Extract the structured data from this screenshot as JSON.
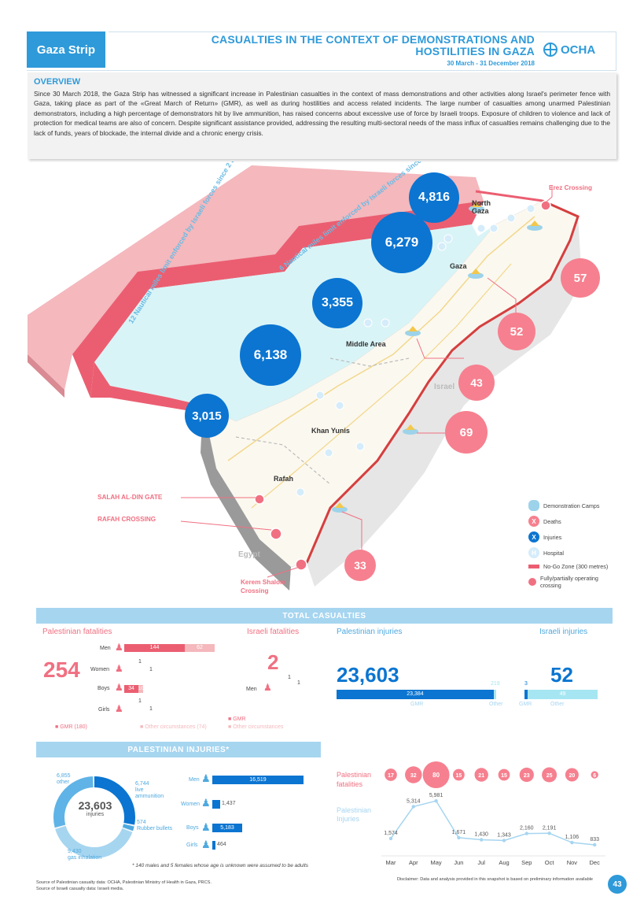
{
  "header": {
    "badge": "Gaza Strip",
    "title_line1": "CASUALTIES IN THE CONTEXT OF DEMONSTRATIONS AND",
    "title_line2": "HOSTILITIES IN GAZA",
    "date_range": "30 March - 31 December 2018",
    "org": "OCHA"
  },
  "overview": {
    "heading": "OVERVIEW",
    "text": "Since 30 March 2018, the Gaza Strip has witnessed a significant increase in Palestinian casualties in the context of mass demonstrations and other activities along Israel's perimeter fence with Gaza, taking place as part of the «Great March of Return» (GMR), as well as during hostilities and access related incidents. The large number of casualties among unarmed Palestinian demonstrators, including a high percentage of demonstrators hit by live ammunition, has raised concerns about excessive use of force by Israeli troops. Exposure of children to violence and lack of protection for medical teams are also of concern. Despite significant assistance provided, addressing the resulting multi-sectoral needs of the mass influx of casualties remains challenging due to the lack of funds, years of blockade, the internal divide and a chronic energy crisis."
  },
  "map": {
    "zone12_label": "12 Nautical miles limit enforced by Israeli forces since 2 January 2019",
    "zone6_label": "6 Nautical miles limit enforced by Israeli forces since 2 January 2019",
    "areas": [
      "North Gaza",
      "Gaza",
      "Middle Area",
      "Khan Yunis",
      "Rafah"
    ],
    "countries": {
      "israel": "Israel",
      "egypt": "Egypt"
    },
    "crossings": {
      "erez": "Erez Crossing",
      "salah": "SALAH AL-DIN GATE",
      "rafah": "RAFAH CROSSING",
      "kerem1": "Kerem Shalom",
      "kerem2": "Crossing"
    },
    "injuries": {
      "north_gaza": "4,816",
      "gaza": "6,279",
      "middle_area": "3,355",
      "khan_yunis": "6,138",
      "rafah": "3,015"
    },
    "deaths": {
      "north_gaza": "57",
      "gaza": "52",
      "middle_area": "43",
      "khan_yunis": "69",
      "rafah": "33"
    }
  },
  "legend": {
    "camps": "Demonstration Camps",
    "deaths": "Deaths",
    "injuries": "Injuries",
    "hospital": "Hospital",
    "nogo": "No-Go Zone (300 metres)",
    "crossing": "Fully/partially operating crossing",
    "sym_death": "X",
    "sym_injury": "X",
    "sym_hospital": "H"
  },
  "total_casualties": {
    "band": "TOTAL CASUALTIES",
    "pal_fatalities_title": "Palestinian fatalities",
    "pal_fatalities_total": "254",
    "isr_fatalities_title": "Israeli fatalities",
    "isr_fatalities_total": "2",
    "pal_injuries_title": "Palestinian injuries",
    "pal_injuries_total": "23,603",
    "isr_injuries_title": "Israeli injuries",
    "isr_injuries_total": "52",
    "rows": [
      {
        "label": "Men",
        "gmr": "144",
        "other": "62"
      },
      {
        "label": "Women",
        "gmr": "1",
        "other": "1"
      },
      {
        "label": "Boys",
        "gmr": "34",
        "other": "10"
      },
      {
        "label": "Girls",
        "gmr": "1",
        "other": "1"
      }
    ],
    "isr_men_label": "Men",
    "isr_men_value": "1",
    "isr_men_value2": "1",
    "legend_gmr": "GMR (180)",
    "legend_other": "Other circumstances (74)",
    "isr_legend_gmr": "GMR",
    "isr_legend_other": "Other circumstances",
    "pal_inj_gmr": "23,384",
    "pal_inj_other": "219",
    "pal_inj_gmr_lbl": "GMR",
    "pal_inj_other_lbl": "Other",
    "isr_inj_gmr": "3",
    "isr_inj_other": "49",
    "isr_inj_gmr_lbl": "GMR",
    "isr_inj_other_lbl": "Other"
  },
  "pal_injuries": {
    "band": "PALESTINIAN INJURIES*",
    "total": "23,603",
    "total_lbl": "injuries",
    "donut": [
      {
        "value": "6,744",
        "label": "live ammunition"
      },
      {
        "value": "574",
        "label": "Rubber bullets"
      },
      {
        "value": "9,430",
        "label": "gas inhalation"
      },
      {
        "value": "6,855",
        "label": "other"
      }
    ],
    "bars": [
      {
        "label": "Men",
        "value": "16,519"
      },
      {
        "label": "Women",
        "value": "1,437"
      },
      {
        "label": "Boys",
        "value": "5,183"
      },
      {
        "label": "Girls",
        "value": "464"
      }
    ],
    "note": "* 140 males and 5 females whose age is unknown were assumed to be adults"
  },
  "monthly": {
    "fat_label1": "Palestinian",
    "fat_label2": "fatalities",
    "inj_label1": "Palestinian",
    "inj_label2": "Injuries",
    "months": [
      "Mar",
      "Apr",
      "May",
      "Jun",
      "Jul",
      "Aug",
      "Sep",
      "Oct",
      "Nov",
      "Dec"
    ],
    "fatalities": [
      "17",
      "32",
      "80",
      "15",
      "21",
      "15",
      "23",
      "25",
      "20",
      "6"
    ],
    "injuries": [
      "1,574",
      "5,314",
      "5,981",
      "1,671",
      "1,430",
      "1,343",
      "2,160",
      "2,191",
      "1,106",
      "833"
    ]
  },
  "footer": {
    "src1": "Source of Palestinian casualty data: OCHA, Palestinian Ministry of Health in Gaza, PRCS.",
    "src2": "Source of Israeli casualty data: Israeli media.",
    "disclaimer": "Disclaimer: Data and analysis provided in this snapshot is based on preliminary information available",
    "page": "43"
  },
  "chart_data": {
    "type": "line",
    "categories": [
      "Mar",
      "Apr",
      "May",
      "Jun",
      "Jul",
      "Aug",
      "Sep",
      "Oct",
      "Nov",
      "Dec"
    ],
    "series": [
      {
        "name": "Palestinian Injuries",
        "values": [
          1574,
          5314,
          5981,
          1671,
          1430,
          1343,
          2160,
          2191,
          1106,
          833
        ]
      },
      {
        "name": "Palestinian fatalities",
        "values": [
          17,
          32,
          80,
          15,
          21,
          15,
          23,
          25,
          20,
          6
        ]
      }
    ],
    "colors": {
      "pink": "#f6808f",
      "blue": "#0b75d1",
      "light_blue": "#a6d5f0",
      "accent": "#2e9ad9"
    }
  }
}
